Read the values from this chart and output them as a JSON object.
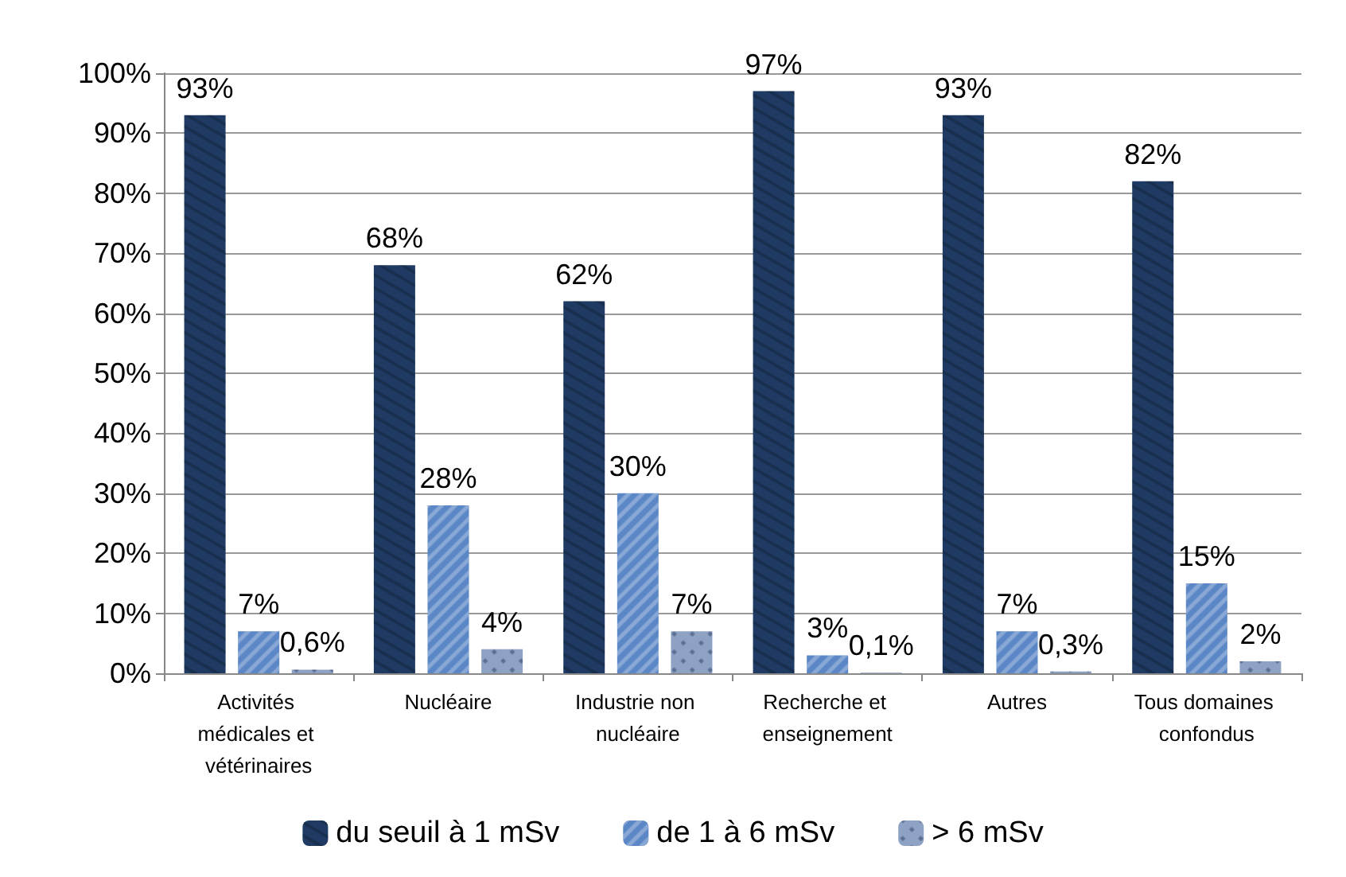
{
  "chart_data": {
    "type": "bar",
    "categories": [
      "Activités médicales et vétérinaires",
      "Nucléaire",
      "Industrie non nucléaire",
      "Recherche et enseignement",
      "Autres",
      "Tous domaines confondus"
    ],
    "series": [
      {
        "name": "du seuil à 1 mSv",
        "color": "#1f3b63",
        "values": [
          93,
          68,
          62,
          97,
          93,
          82
        ],
        "value_labels": [
          "93%",
          "68%",
          "62%",
          "97%",
          "93%",
          "82%"
        ]
      },
      {
        "name": "de 1 à 6 mSv",
        "color": "#5b87c6",
        "values": [
          7,
          28,
          30,
          3,
          7,
          15
        ],
        "value_labels": [
          "7%",
          "28%",
          "30%",
          "3%",
          "7%",
          "15%"
        ]
      },
      {
        "name": "> 6 mSv",
        "color": "#8ea3c4",
        "values": [
          0.6,
          4,
          7,
          0.1,
          0.3,
          2
        ],
        "value_labels": [
          "0,6%",
          "4%",
          "7%",
          "0,1%",
          "0,3%",
          "2%"
        ]
      }
    ],
    "ylim": [
      0,
      100
    ],
    "yticks": [
      {
        "value": 0,
        "label": "0%"
      },
      {
        "value": 10,
        "label": "10%"
      },
      {
        "value": 20,
        "label": "20%"
      },
      {
        "value": 30,
        "label": "30%"
      },
      {
        "value": 40,
        "label": "40%"
      },
      {
        "value": 50,
        "label": "50%"
      },
      {
        "value": 60,
        "label": "60%"
      },
      {
        "value": 70,
        "label": "70%"
      },
      {
        "value": 80,
        "label": "80%"
      },
      {
        "value": 90,
        "label": "90%"
      },
      {
        "value": 100,
        "label": "100%"
      }
    ],
    "grid": "y",
    "legend": "bottom"
  }
}
